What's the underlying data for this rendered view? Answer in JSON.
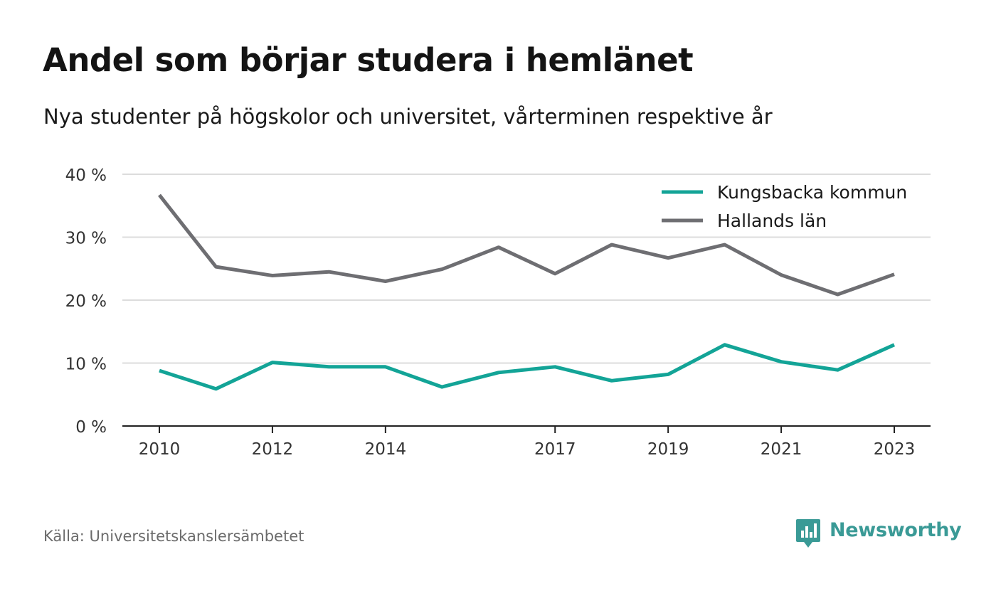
{
  "header": {
    "title": "Andel som börjar studera i hemlänet",
    "subtitle": "Nya studenter på högskolor och universitet, vårterminen respektive år"
  },
  "footer": {
    "source": "Källa: Universitetskanslersämbetet",
    "brand": "Newsworthy",
    "brand_icon": "newsworthy-logo-icon"
  },
  "colors": {
    "kungsbacka": "#13a497",
    "hallands": "#6e6e72",
    "grid": "#dcdcdc",
    "axis": "#222222",
    "brand": "#3a9a96"
  },
  "chart_data": {
    "type": "line",
    "x": [
      2010,
      2011,
      2012,
      2013,
      2014,
      2015,
      2016,
      2017,
      2018,
      2019,
      2020,
      2021,
      2022,
      2023
    ],
    "xticks": [
      "2010",
      "2012",
      "2014",
      "2017",
      "2019",
      "2021",
      "2023"
    ],
    "yticks": [
      "0 %",
      "10 %",
      "20 %",
      "30 %",
      "40 %"
    ],
    "ylim": [
      0,
      40
    ],
    "grid": true,
    "legend_position": "top-right",
    "series": [
      {
        "name": "Kungsbacka kommun",
        "color_key": "kungsbacka",
        "values": [
          8.8,
          5.9,
          10.1,
          9.4,
          9.4,
          6.2,
          8.5,
          9.4,
          7.2,
          8.2,
          12.9,
          10.2,
          8.9,
          12.9
        ]
      },
      {
        "name": "Hallands län",
        "color_key": "hallands",
        "values": [
          36.7,
          25.3,
          23.9,
          24.5,
          23.0,
          24.9,
          28.4,
          24.2,
          28.8,
          26.7,
          28.8,
          24.0,
          20.9,
          24.1
        ]
      }
    ]
  }
}
